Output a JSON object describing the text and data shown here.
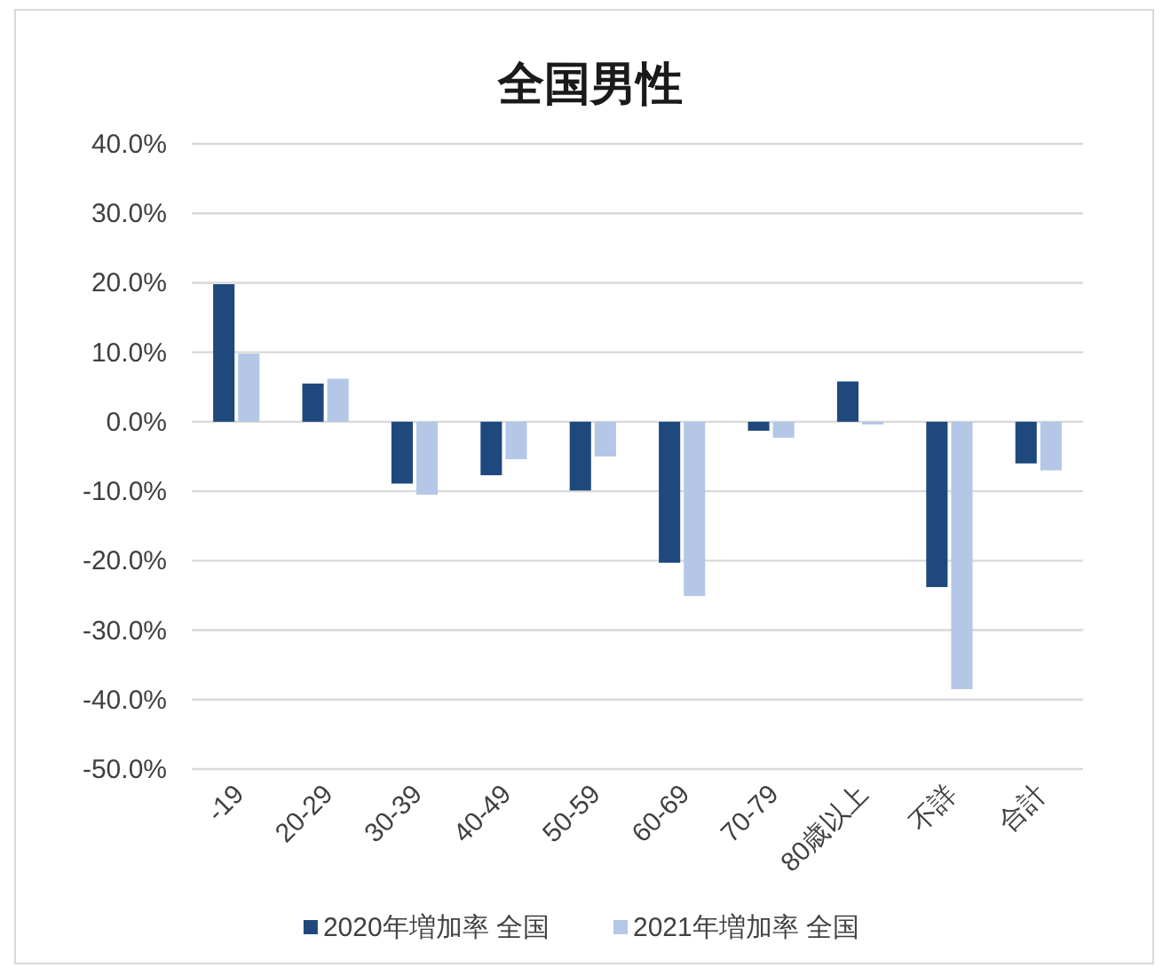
{
  "chart_data": {
    "type": "bar",
    "title": "全国男性",
    "categories": [
      "-19",
      "20-29",
      "30-39",
      "40-49",
      "50-59",
      "60-69",
      "70-79",
      "80歳以上",
      "不詳",
      "合計"
    ],
    "series": [
      {
        "name": "2020年増加率 全国",
        "color": "#1f497d",
        "values": [
          19.8,
          5.5,
          -8.9,
          -7.7,
          -9.9,
          -20.3,
          -1.3,
          5.8,
          -23.8,
          -6.0
        ]
      },
      {
        "name": "2021年増加率 全国",
        "color": "#b4c7e7",
        "values": [
          9.8,
          6.2,
          -10.5,
          -5.4,
          -5.0,
          -25.1,
          -2.3,
          -0.4,
          -38.5,
          -7.0
        ]
      }
    ],
    "ylim": [
      -50,
      40
    ],
    "yticks": [
      {
        "value": -50,
        "label": "-50.0%"
      },
      {
        "value": -40,
        "label": "-40.0%"
      },
      {
        "value": -30,
        "label": "-30.0%"
      },
      {
        "value": -20,
        "label": "-20.0%"
      },
      {
        "value": -10,
        "label": "-10.0%"
      },
      {
        "value": 0,
        "label": "0.0%"
      },
      {
        "value": 10,
        "label": "10.0%"
      },
      {
        "value": 20,
        "label": "20.0%"
      },
      {
        "value": 30,
        "label": "30.0%"
      },
      {
        "value": 40,
        "label": "40.0%"
      }
    ],
    "grid": "y",
    "legend": "bottom"
  }
}
